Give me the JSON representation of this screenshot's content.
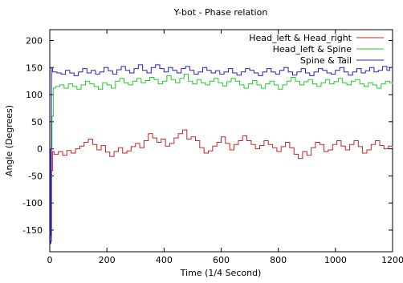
{
  "chart_data": {
    "type": "line",
    "title": "Y-bot - Phase relation",
    "xlabel": "Time (1/4 Second)",
    "ylabel": "Angle (Degrees)",
    "xlim": [
      0,
      1200
    ],
    "ylim": [
      -190,
      220
    ],
    "x_ticks": [
      0,
      200,
      400,
      600,
      800,
      1000,
      1200
    ],
    "y_ticks": [
      -150,
      -100,
      -50,
      0,
      50,
      100,
      150,
      200
    ],
    "x_tick_labels": [
      "0",
      "200",
      "400",
      "600",
      "800",
      "1000",
      "1200"
    ],
    "y_tick_labels": [
      "-150",
      "-100",
      "-50",
      "0",
      "50",
      "100",
      "150",
      "200"
    ],
    "legend_position": "top-right",
    "grid": false,
    "series": [
      {
        "name": "Head_left & Head_right",
        "color": "#cc2222",
        "step": true,
        "x": [
          0,
          3,
          6,
          10,
          15,
          30,
          45,
          60,
          75,
          90,
          105,
          120,
          135,
          150,
          165,
          180,
          195,
          210,
          225,
          240,
          255,
          270,
          285,
          300,
          315,
          330,
          345,
          360,
          375,
          390,
          405,
          420,
          435,
          450,
          465,
          480,
          495,
          510,
          525,
          540,
          555,
          570,
          585,
          600,
          615,
          630,
          645,
          660,
          675,
          690,
          705,
          720,
          735,
          750,
          765,
          780,
          795,
          810,
          825,
          840,
          855,
          870,
          885,
          900,
          915,
          930,
          945,
          960,
          975,
          990,
          1005,
          1020,
          1035,
          1050,
          1065,
          1080,
          1095,
          1110,
          1125,
          1140,
          1155,
          1170,
          1185,
          1200
        ],
        "values": [
          0,
          -160,
          -40,
          -5,
          -10,
          -5,
          -12,
          -3,
          -8,
          0,
          5,
          12,
          18,
          8,
          -2,
          6,
          -6,
          -14,
          -5,
          2,
          -8,
          -4,
          4,
          10,
          2,
          15,
          28,
          20,
          12,
          18,
          5,
          10,
          20,
          28,
          35,
          18,
          22,
          15,
          2,
          -8,
          -4,
          5,
          12,
          22,
          10,
          -2,
          8,
          15,
          24,
          15,
          8,
          0,
          6,
          15,
          8,
          2,
          -5,
          4,
          12,
          2,
          -10,
          -18,
          -5,
          -12,
          2,
          12,
          8,
          -5,
          -2,
          8,
          15,
          5,
          -2,
          8,
          15,
          4,
          -8,
          -2,
          8,
          15,
          6,
          0,
          5,
          2
        ]
      },
      {
        "name": "Head_left & Spine",
        "color": "#22cc22",
        "step": true,
        "x": [
          0,
          5,
          8,
          12,
          20,
          35,
          50,
          65,
          80,
          95,
          110,
          125,
          140,
          155,
          170,
          185,
          200,
          215,
          230,
          245,
          260,
          275,
          290,
          305,
          320,
          335,
          350,
          365,
          380,
          395,
          410,
          425,
          440,
          455,
          470,
          485,
          500,
          515,
          530,
          545,
          560,
          575,
          590,
          605,
          620,
          635,
          650,
          665,
          680,
          695,
          710,
          725,
          740,
          755,
          770,
          785,
          800,
          815,
          830,
          845,
          860,
          875,
          890,
          905,
          920,
          935,
          950,
          965,
          980,
          995,
          1010,
          1025,
          1040,
          1055,
          1070,
          1085,
          1100,
          1115,
          1130,
          1145,
          1160,
          1175,
          1190,
          1200
        ],
        "values": [
          0,
          2,
          60,
          112,
          115,
          118,
          112,
          120,
          115,
          110,
          118,
          125,
          120,
          115,
          110,
          122,
          118,
          112,
          125,
          130,
          122,
          118,
          125,
          130,
          122,
          126,
          132,
          128,
          120,
          125,
          135,
          128,
          122,
          130,
          138,
          125,
          120,
          128,
          122,
          118,
          125,
          130,
          122,
          116,
          124,
          130,
          125,
          118,
          112,
          120,
          126,
          118,
          112,
          120,
          125,
          118,
          110,
          118,
          125,
          132,
          125,
          118,
          124,
          128,
          120,
          115,
          122,
          128,
          120,
          124,
          130,
          122,
          118,
          125,
          128,
          120,
          115,
          122,
          118,
          112,
          120,
          125,
          122,
          120
        ]
      },
      {
        "name": "Spine & Tail",
        "color": "#2222cc",
        "step": true,
        "x": [
          0,
          2,
          4,
          6,
          10,
          25,
          40,
          55,
          70,
          85,
          100,
          115,
          130,
          145,
          160,
          175,
          190,
          205,
          220,
          235,
          250,
          265,
          280,
          295,
          310,
          325,
          340,
          355,
          370,
          385,
          400,
          415,
          430,
          445,
          460,
          475,
          490,
          505,
          520,
          535,
          550,
          565,
          580,
          595,
          610,
          625,
          640,
          655,
          670,
          685,
          700,
          715,
          730,
          745,
          760,
          775,
          790,
          805,
          820,
          835,
          850,
          865,
          880,
          895,
          910,
          925,
          940,
          955,
          970,
          985,
          1000,
          1015,
          1030,
          1045,
          1060,
          1075,
          1090,
          1105,
          1120,
          1135,
          1150,
          1165,
          1180,
          1190,
          1200
        ],
        "values": [
          0,
          -175,
          -170,
          150,
          142,
          140,
          138,
          145,
          140,
          135,
          142,
          148,
          140,
          145,
          138,
          142,
          150,
          144,
          138,
          146,
          152,
          145,
          140,
          148,
          155,
          145,
          140,
          150,
          155,
          148,
          142,
          150,
          145,
          140,
          148,
          152,
          145,
          138,
          142,
          150,
          145,
          140,
          144,
          138,
          142,
          148,
          140,
          136,
          142,
          148,
          145,
          140,
          135,
          142,
          148,
          142,
          138,
          145,
          150,
          142,
          136,
          142,
          148,
          140,
          135,
          142,
          148,
          145,
          140,
          138,
          145,
          150,
          142,
          136,
          142,
          148,
          140,
          144,
          150,
          142,
          145,
          152,
          145,
          150,
          148
        ]
      }
    ]
  }
}
